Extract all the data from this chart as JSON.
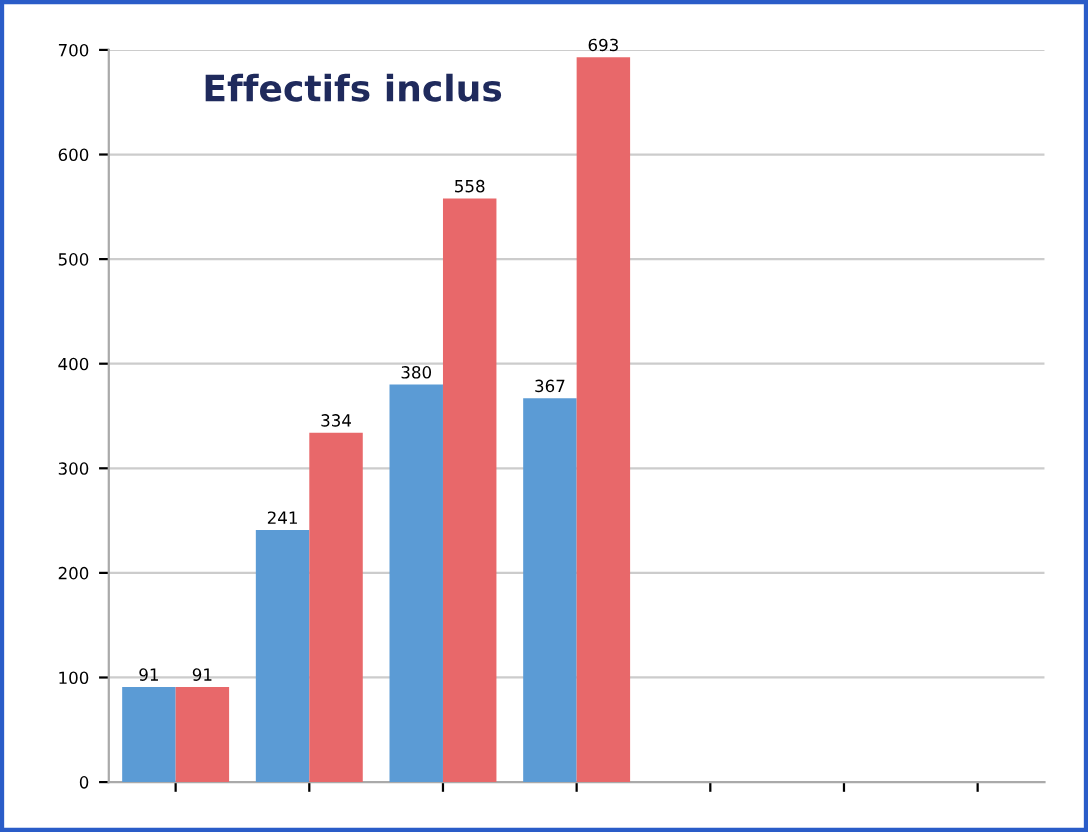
{
  "chart_data": {
    "type": "bar",
    "title": "Effectifs inclus",
    "categories": [
      null,
      null,
      null,
      null,
      null,
      null,
      null
    ],
    "series": [
      {
        "color": "#5b9bd5",
        "values": [
          91,
          241,
          380,
          367,
          null,
          null,
          null
        ]
      },
      {
        "color": "#e8686a",
        "values": [
          91,
          334,
          558,
          693,
          null,
          null,
          null
        ]
      }
    ],
    "ylim": [
      0,
      700
    ],
    "yticks": [
      0,
      100,
      200,
      300,
      400,
      500,
      600,
      700
    ],
    "grid": "y",
    "data_labels": true
  }
}
